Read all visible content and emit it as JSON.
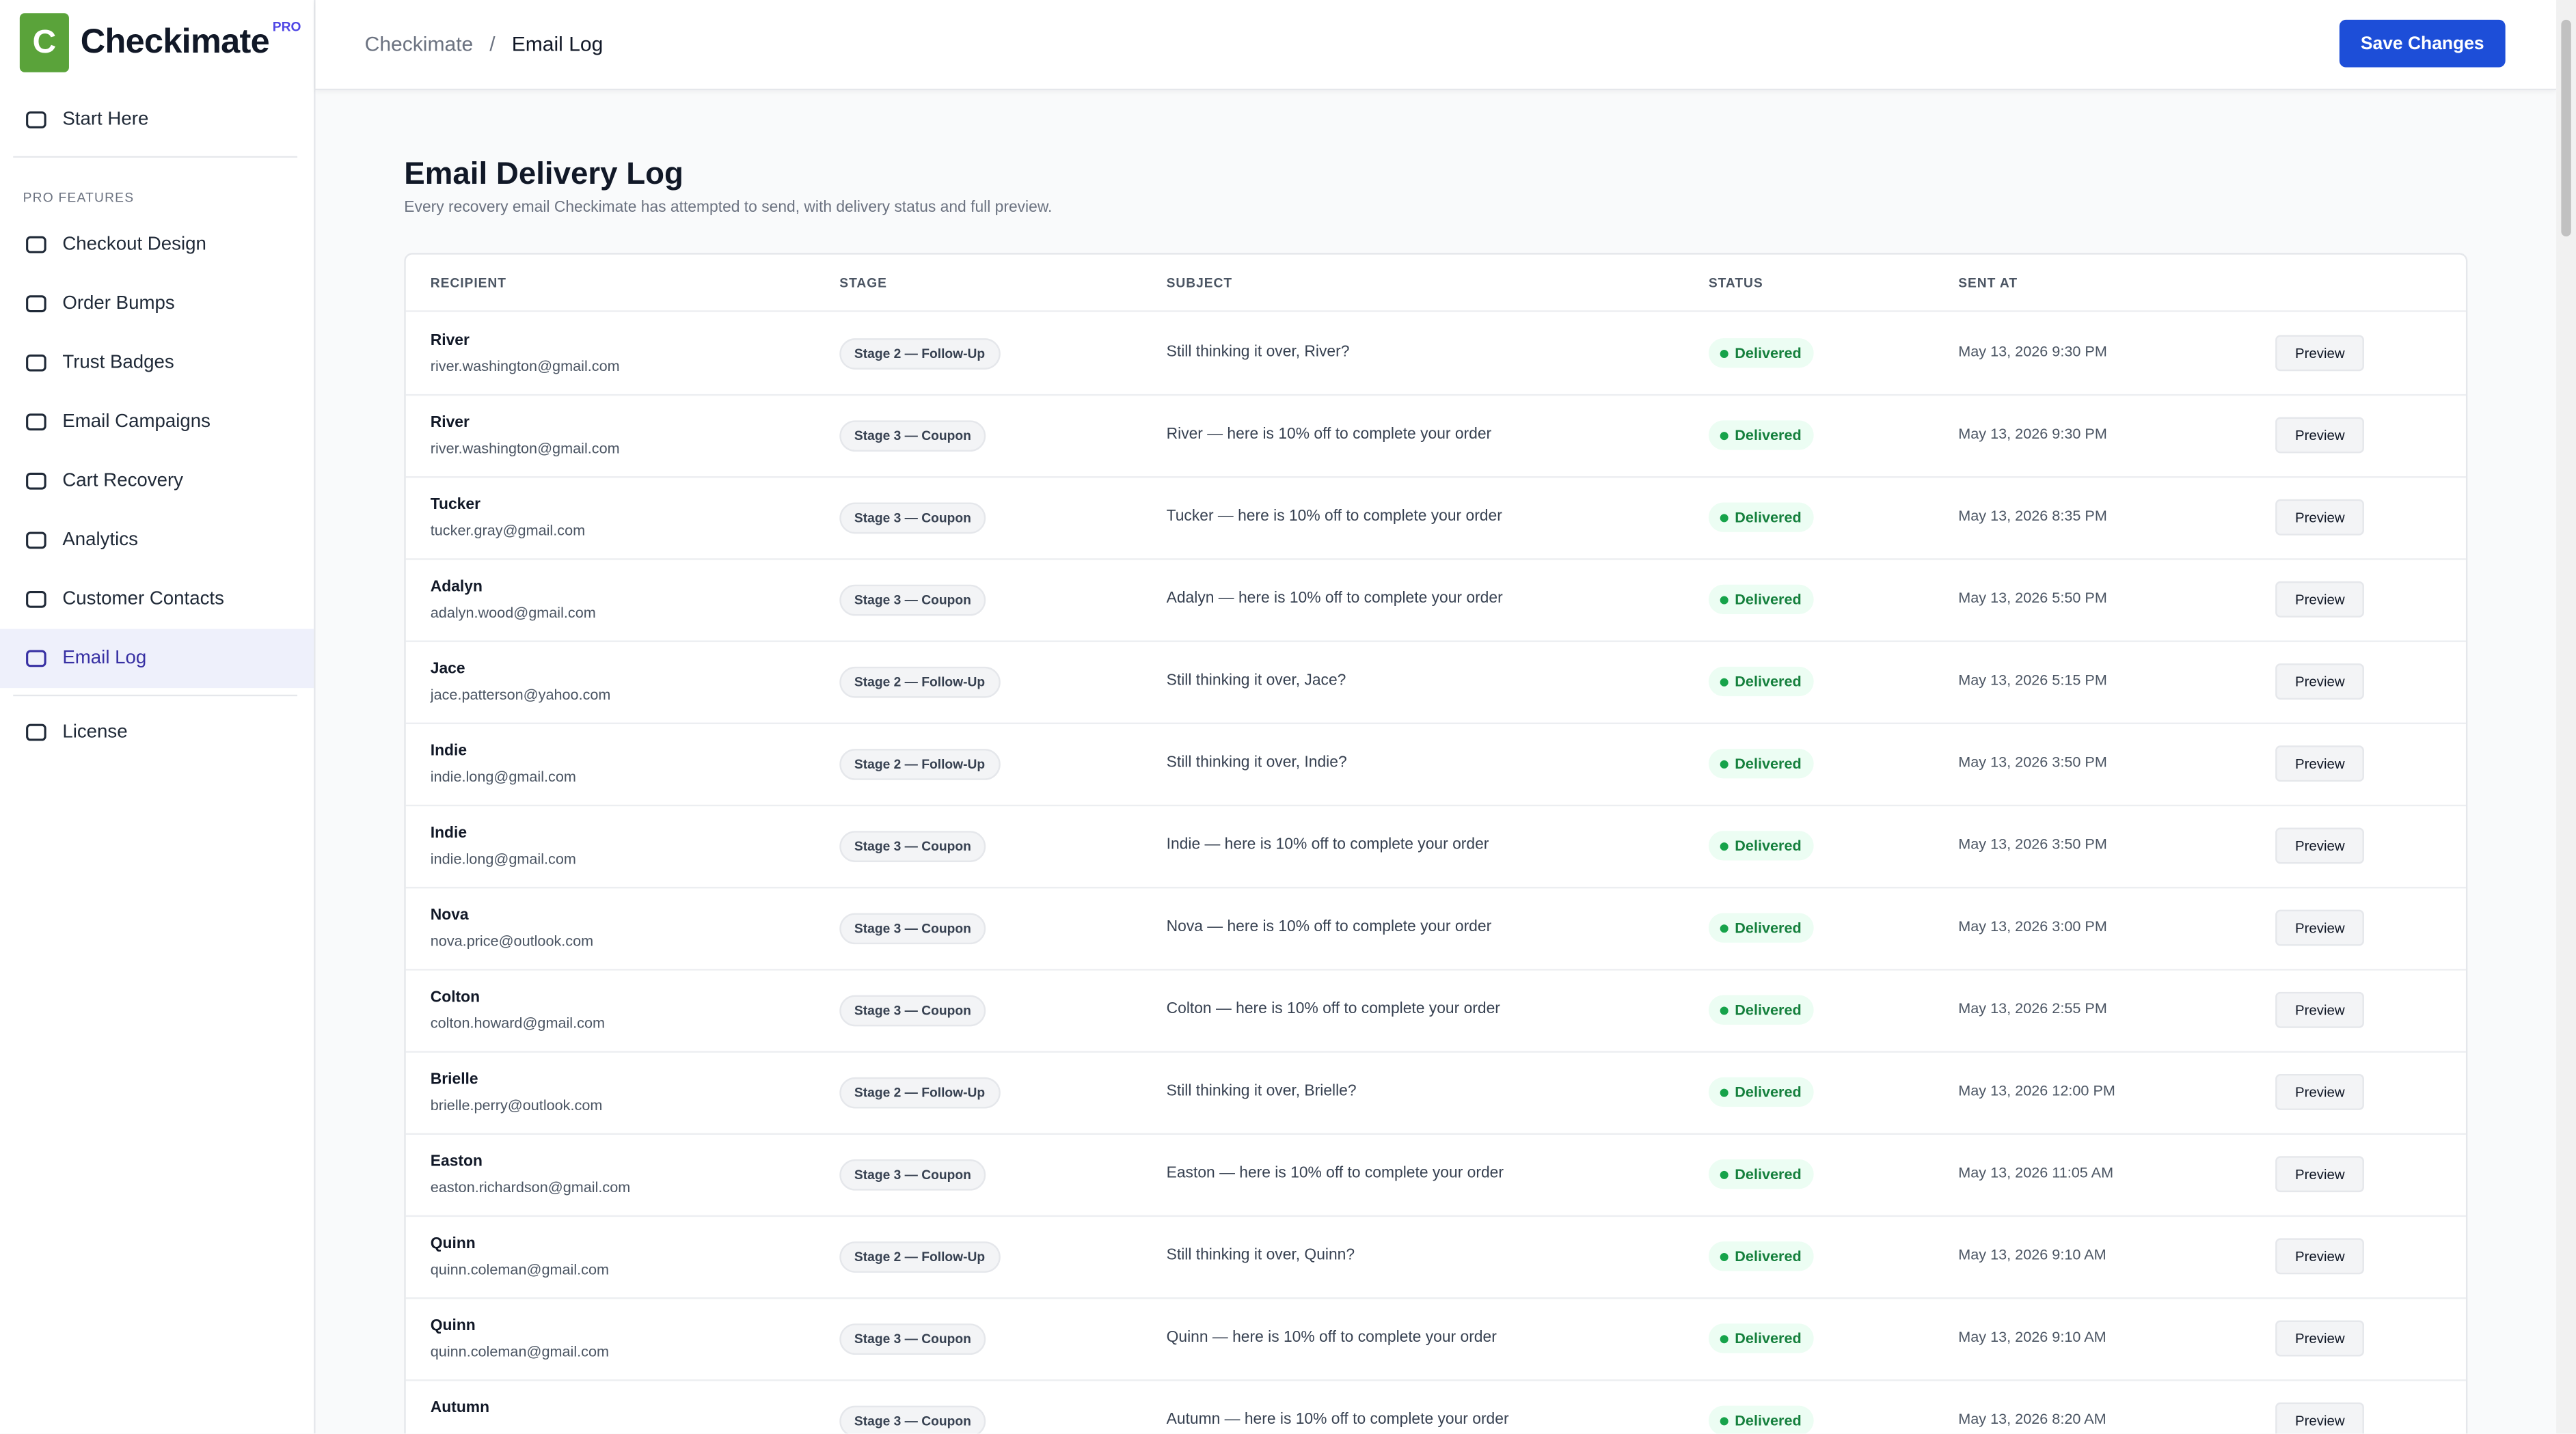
{
  "brand": {
    "mark": "C",
    "name": "Checkimate",
    "badge": "PRO"
  },
  "breadcrumb": [
    "Checkimate",
    "/",
    "Email Log"
  ],
  "header": {
    "button": "Save Changes"
  },
  "sidebar": {
    "top": [
      "Start Here"
    ],
    "section": "PRO FEATURES",
    "items": [
      "Checkout Design",
      "Order Bumps",
      "Trust Badges",
      "Email Campaigns",
      "Cart Recovery",
      "Analytics",
      "Customer Contacts",
      "Email Log"
    ],
    "active": "Email Log",
    "bottom": [
      "License"
    ]
  },
  "page": {
    "title": "Email Delivery Log",
    "subtitle": "Every recovery email Checkimate has attempted to send, with delivery status and full preview."
  },
  "table": {
    "columns": [
      "RECIPIENT",
      "STAGE",
      "SUBJECT",
      "STATUS",
      "SENT AT"
    ],
    "rows": [
      {
        "name": "River",
        "email": "river.washington@gmail.com",
        "stage": "Stage 2 — Follow-Up",
        "subject": "Still thinking it over, River?",
        "status": "Delivered",
        "sent": "May 13, 2026 9:30 PM",
        "action": "Preview"
      },
      {
        "name": "River",
        "email": "river.washington@gmail.com",
        "stage": "Stage 3 — Coupon",
        "subject": "River — here is 10% off to complete your order",
        "status": "Delivered",
        "sent": "May 13, 2026 9:30 PM",
        "action": "Preview"
      },
      {
        "name": "Tucker",
        "email": "tucker.gray@gmail.com",
        "stage": "Stage 3 — Coupon",
        "subject": "Tucker — here is 10% off to complete your order",
        "status": "Delivered",
        "sent": "May 13, 2026 8:35 PM",
        "action": "Preview"
      },
      {
        "name": "Adalyn",
        "email": "adalyn.wood@gmail.com",
        "stage": "Stage 3 — Coupon",
        "subject": "Adalyn — here is 10% off to complete your order",
        "status": "Delivered",
        "sent": "May 13, 2026 5:50 PM",
        "action": "Preview"
      },
      {
        "name": "Jace",
        "email": "jace.patterson@yahoo.com",
        "stage": "Stage 2 — Follow-Up",
        "subject": "Still thinking it over, Jace?",
        "status": "Delivered",
        "sent": "May 13, 2026 5:15 PM",
        "action": "Preview"
      },
      {
        "name": "Indie",
        "email": "indie.long@gmail.com",
        "stage": "Stage 2 — Follow-Up",
        "subject": "Still thinking it over, Indie?",
        "status": "Delivered",
        "sent": "May 13, 2026 3:50 PM",
        "action": "Preview"
      },
      {
        "name": "Indie",
        "email": "indie.long@gmail.com",
        "stage": "Stage 3 — Coupon",
        "subject": "Indie — here is 10% off to complete your order",
        "status": "Delivered",
        "sent": "May 13, 2026 3:50 PM",
        "action": "Preview"
      },
      {
        "name": "Nova",
        "email": "nova.price@outlook.com",
        "stage": "Stage 3 — Coupon",
        "subject": "Nova — here is 10% off to complete your order",
        "status": "Delivered",
        "sent": "May 13, 2026 3:00 PM",
        "action": "Preview"
      },
      {
        "name": "Colton",
        "email": "colton.howard@gmail.com",
        "stage": "Stage 3 — Coupon",
        "subject": "Colton — here is 10% off to complete your order",
        "status": "Delivered",
        "sent": "May 13, 2026 2:55 PM",
        "action": "Preview"
      },
      {
        "name": "Brielle",
        "email": "brielle.perry@outlook.com",
        "stage": "Stage 2 — Follow-Up",
        "subject": "Still thinking it over, Brielle?",
        "status": "Delivered",
        "sent": "May 13, 2026 12:00 PM",
        "action": "Preview"
      },
      {
        "name": "Easton",
        "email": "easton.richardson@gmail.com",
        "stage": "Stage 3 — Coupon",
        "subject": "Easton — here is 10% off to complete your order",
        "status": "Delivered",
        "sent": "May 13, 2026 11:05 AM",
        "action": "Preview"
      },
      {
        "name": "Quinn",
        "email": "quinn.coleman@gmail.com",
        "stage": "Stage 2 — Follow-Up",
        "subject": "Still thinking it over, Quinn?",
        "status": "Delivered",
        "sent": "May 13, 2026 9:10 AM",
        "action": "Preview"
      },
      {
        "name": "Quinn",
        "email": "quinn.coleman@gmail.com",
        "stage": "Stage 3 — Coupon",
        "subject": "Quinn — here is 10% off to complete your order",
        "status": "Delivered",
        "sent": "May 13, 2026 9:10 AM",
        "action": "Preview"
      },
      {
        "name": "Autumn",
        "stage": "Stage 3 — Coupon",
        "subject": "Autumn — here is 10% off to complete your order",
        "status": "Delivered",
        "sent": "May 13, 2026 8:20 AM",
        "action": "Preview"
      }
    ]
  }
}
